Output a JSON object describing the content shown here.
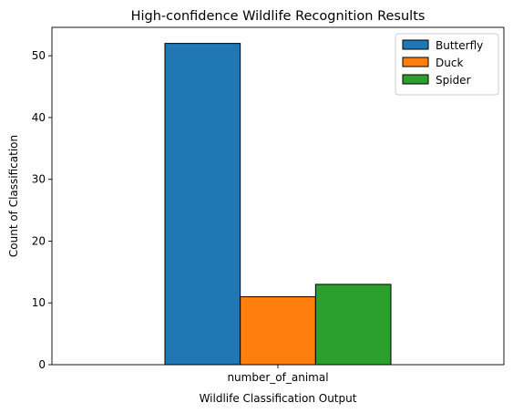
{
  "chart_data": {
    "type": "bar",
    "title": "High-confidence Wildlife Recognition Results",
    "xlabel": "Wildlife Classification Output",
    "ylabel": "Count of Classification",
    "categories": [
      "number_of_animal"
    ],
    "series": [
      {
        "name": "Butterfly",
        "values": [
          52
        ],
        "color": "#1f77b4"
      },
      {
        "name": "Duck",
        "values": [
          11
        ],
        "color": "#ff7f0e"
      },
      {
        "name": "Spider",
        "values": [
          13
        ],
        "color": "#2ca02c"
      }
    ],
    "ylim": [
      0,
      54.6
    ],
    "yticks": [
      0,
      10,
      20,
      30,
      40,
      50
    ],
    "grid": false,
    "legend_position": "top-right",
    "bar_edge_color": "#000000"
  }
}
